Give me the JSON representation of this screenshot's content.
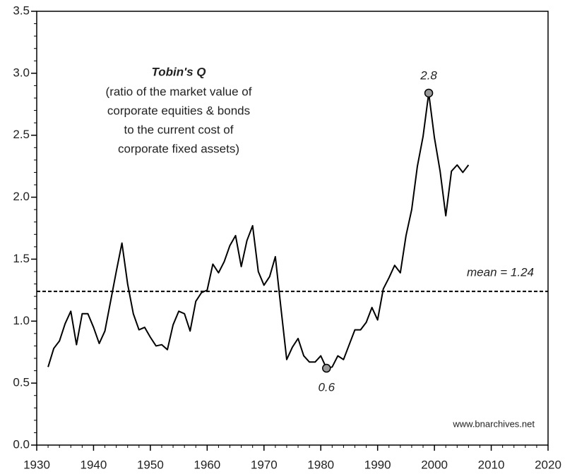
{
  "chart_data": {
    "type": "line",
    "title": "Tobin's Q",
    "subtitle": [
      "(ratio of the market value of",
      "corporate equities & bonds",
      "to the current cost of",
      "corporate fixed assets)"
    ],
    "x": [
      1932,
      1933,
      1934,
      1935,
      1936,
      1937,
      1938,
      1939,
      1940,
      1941,
      1942,
      1943,
      1944,
      1945,
      1946,
      1947,
      1948,
      1949,
      1950,
      1951,
      1952,
      1953,
      1954,
      1955,
      1956,
      1957,
      1958,
      1959,
      1960,
      1961,
      1962,
      1963,
      1964,
      1965,
      1966,
      1967,
      1968,
      1969,
      1970,
      1971,
      1972,
      1973,
      1974,
      1975,
      1976,
      1977,
      1978,
      1979,
      1980,
      1981,
      1982,
      1983,
      1984,
      1985,
      1986,
      1987,
      1988,
      1989,
      1990,
      1991,
      1992,
      1993,
      1994,
      1995,
      1996,
      1997,
      1998,
      1999,
      2000,
      2001,
      2002,
      2003,
      2004,
      2005,
      2006
    ],
    "values": [
      0.63,
      0.78,
      0.84,
      0.98,
      1.08,
      0.81,
      1.06,
      1.06,
      0.95,
      0.82,
      0.92,
      1.16,
      1.4,
      1.63,
      1.3,
      1.06,
      0.93,
      0.95,
      0.87,
      0.8,
      0.81,
      0.77,
      0.97,
      1.08,
      1.06,
      0.92,
      1.16,
      1.23,
      1.25,
      1.46,
      1.39,
      1.48,
      1.61,
      1.69,
      1.44,
      1.65,
      1.77,
      1.4,
      1.29,
      1.36,
      1.52,
      1.1,
      0.69,
      0.79,
      0.86,
      0.72,
      0.67,
      0.67,
      0.72,
      0.62,
      0.63,
      0.72,
      0.69,
      0.81,
      0.93,
      0.93,
      0.99,
      1.11,
      1.01,
      1.26,
      1.35,
      1.45,
      1.39,
      1.69,
      1.9,
      2.25,
      2.49,
      2.84,
      2.48,
      2.21,
      1.85,
      2.21,
      2.26,
      2.2,
      2.26
    ],
    "color": "#000000",
    "annotations": [
      {
        "x": 1999,
        "y": 2.84,
        "label": "2.8"
      },
      {
        "x": 1981,
        "y": 0.62,
        "label": "0.6"
      }
    ],
    "mean": {
      "value": 1.24,
      "label": "mean = 1.24"
    },
    "source": "www.bnarchives.net",
    "xlim": [
      1930,
      2020
    ],
    "xticks": [
      1930,
      1940,
      1950,
      1960,
      1970,
      1980,
      1990,
      2000,
      2010,
      2020
    ],
    "ylim": [
      0,
      3.5
    ],
    "yticks": [
      {
        "value": 0,
        "label": "0.0"
      },
      {
        "value": 0.5,
        "label": "0.5"
      },
      {
        "value": 1,
        "label": "1.0"
      },
      {
        "value": 1.5,
        "label": "1.5"
      },
      {
        "value": 2,
        "label": "2.0"
      },
      {
        "value": 2.5,
        "label": "2.5"
      },
      {
        "value": 3,
        "label": "3.0"
      },
      {
        "value": 3.5,
        "label": "3.5"
      }
    ],
    "minor_ticks": {
      "x": 2,
      "y": 0.1
    }
  }
}
